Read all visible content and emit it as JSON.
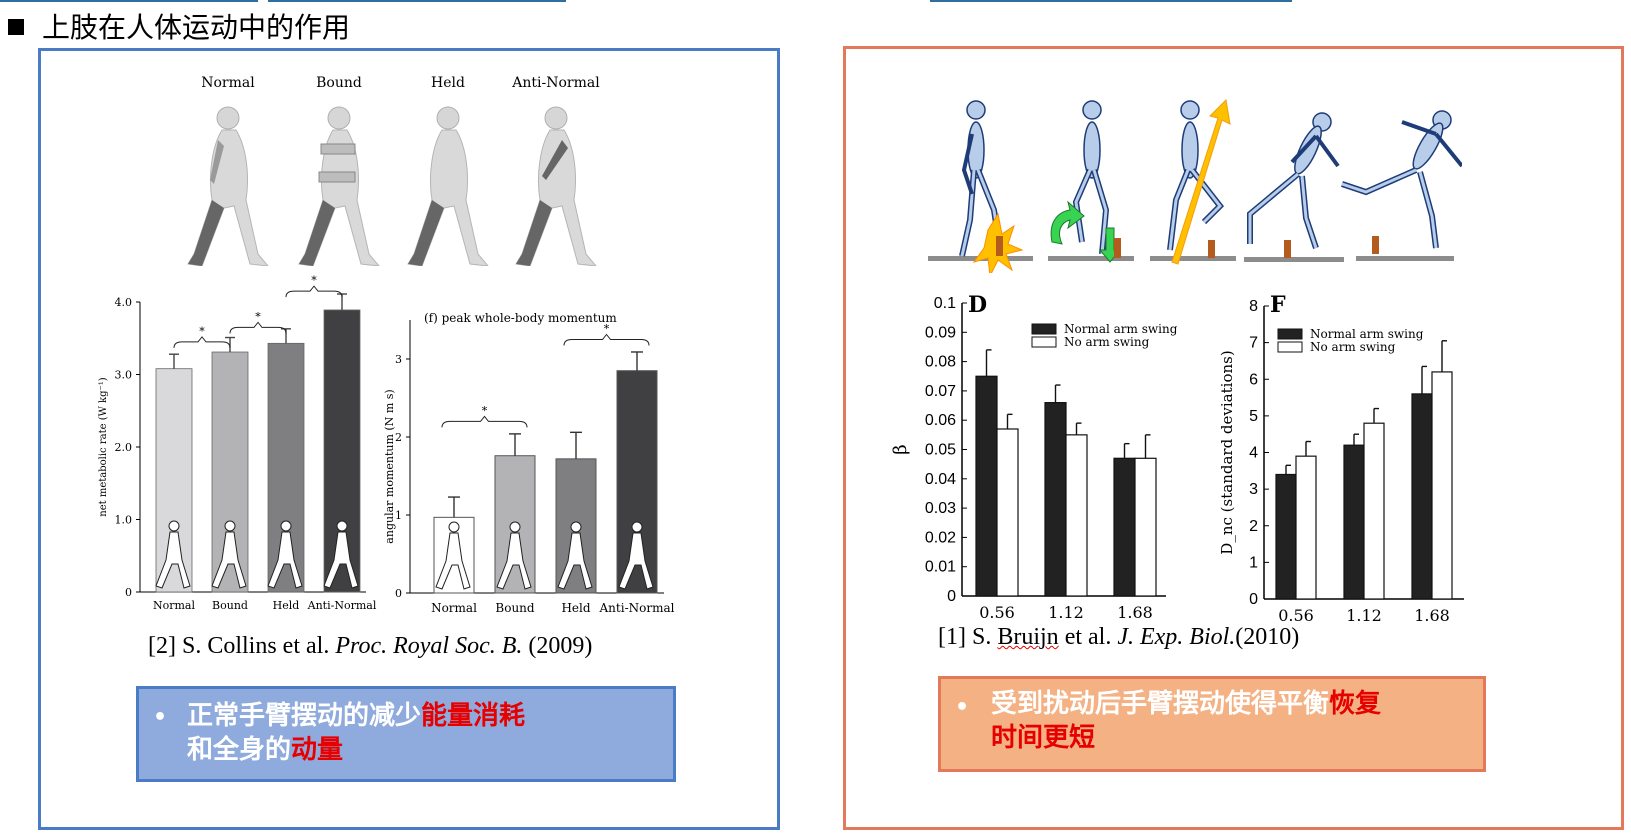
{
  "slide": {
    "heading": "上肢在人体运动中的作用"
  },
  "left": {
    "figure_labels": [
      "Normal",
      "Bound",
      "Held",
      "Anti-Normal"
    ],
    "citation_prefix": "[2] S. Collins et al. ",
    "citation_journal": "Proc. Royal Soc. B.",
    "citation_year": " (2009)",
    "callout_bullet": "•",
    "callout_text_1": "正常手臂摆动的减少",
    "callout_red_1": "能量消耗",
    "callout_text_2": "和全身的",
    "callout_red_2": "动量"
  },
  "right": {
    "citation_prefix": "[1] S. ",
    "citation_author": "Bruijn",
    "citation_mid": " et al. ",
    "citation_journal": "J. Exp. Biol.",
    "citation_year": "(2010)",
    "callout_bullet": "•",
    "callout_text": "受到扰动后手臂摆动使得平衡",
    "callout_red_1": "恢复",
    "callout_red_2": "时间更短"
  },
  "colors": {
    "left_border": "#4a7cc6",
    "right_border": "#e4785a",
    "left_callout_bg": "#8faadc",
    "right_callout_bg": "#f4b183",
    "highlight_red": "#e60000"
  },
  "chart_data": [
    {
      "type": "bar",
      "ylabel": "net metabolic rate (W kg⁻¹)",
      "categories": [
        "Normal",
        "Bound",
        "Held",
        "Anti-Normal"
      ],
      "values": [
        3.08,
        3.31,
        3.43,
        3.89
      ],
      "errors": [
        0.2,
        0.2,
        0.2,
        0.22
      ],
      "colors": [
        "#d9d9db",
        "#b3b3b5",
        "#7f7f81",
        "#404042"
      ],
      "ylim": [
        0,
        4.0
      ],
      "yticks": [
        "0",
        "1.0",
        "2.0",
        "3.0",
        "4.0"
      ],
      "significance": [
        "*",
        "*",
        "*"
      ]
    },
    {
      "type": "bar",
      "title": "(f) peak whole-body momentum",
      "ylabel": "angular momentum (N m s)",
      "categories": [
        "Normal",
        "Bound",
        "Held",
        "Anti-Normal"
      ],
      "values": [
        0.97,
        1.76,
        1.72,
        2.85
      ],
      "errors": [
        0.26,
        0.28,
        0.34,
        0.24
      ],
      "colors": [
        "#ffffff",
        "#b3b3b5",
        "#7f7f81",
        "#404042"
      ],
      "ylim": [
        0,
        3.5
      ],
      "yticks": [
        "0",
        "1",
        "2",
        "3"
      ],
      "significance": [
        "*",
        "*"
      ]
    },
    {
      "type": "bar",
      "panel": "D",
      "ylabel": "β",
      "categories": [
        "0.56",
        "1.12",
        "1.68"
      ],
      "series": [
        {
          "name": "Normal arm swing",
          "values": [
            0.075,
            0.066,
            0.047
          ],
          "errors": [
            0.009,
            0.006,
            0.005
          ],
          "color": "#222222"
        },
        {
          "name": "No arm swing",
          "values": [
            0.057,
            0.055,
            0.047
          ],
          "errors": [
            0.005,
            0.004,
            0.008
          ],
          "color": "#ffffff"
        }
      ],
      "ylim": [
        0,
        0.1
      ],
      "yticks": [
        "0",
        "0.01",
        "0.02",
        "0.03",
        "0.04",
        "0.05",
        "0.06",
        "0.07",
        "0.08",
        "0.09",
        "0.1"
      ]
    },
    {
      "type": "bar",
      "panel": "F",
      "ylabel": "D_nc (standard deviations)",
      "categories": [
        "0.56",
        "1.12",
        "1.68"
      ],
      "series": [
        {
          "name": "Normal arm swing",
          "values": [
            3.4,
            4.2,
            5.6
          ],
          "errors": [
            0.25,
            0.3,
            0.75
          ],
          "color": "#222222"
        },
        {
          "name": "No arm swing",
          "values": [
            3.9,
            4.8,
            6.2
          ],
          "errors": [
            0.4,
            0.4,
            0.85
          ],
          "color": "#ffffff"
        }
      ],
      "ylim": [
        0,
        8
      ],
      "yticks": [
        "0",
        "1",
        "2",
        "3",
        "4",
        "5",
        "6",
        "7",
        "8"
      ]
    }
  ]
}
